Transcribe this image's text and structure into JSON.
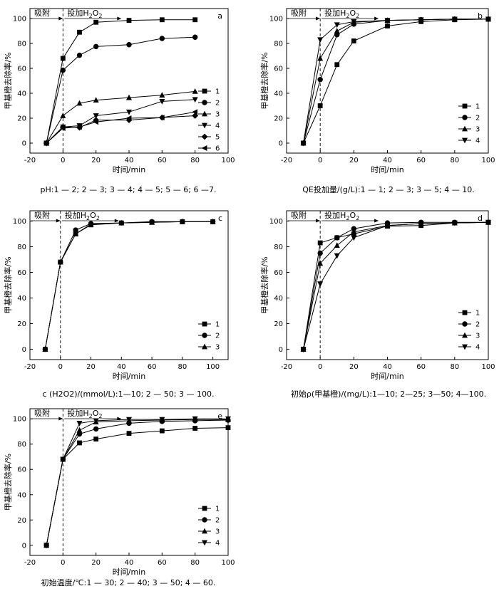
{
  "chart_data": [
    {
      "type": "line",
      "panel": "a",
      "xlabel": "时间/min",
      "ylabel": "甲基橙去除率/%",
      "xlim": [
        -20,
        100
      ],
      "ylim": [
        -8,
        108
      ],
      "xticks": [
        -20,
        0,
        20,
        40,
        60,
        80,
        100
      ],
      "yticks": [
        0,
        20,
        40,
        60,
        80,
        100
      ],
      "annotations": {
        "adsorption": "吸附",
        "h2o2_prefix": "投加H",
        "h2o2_sub1": "2",
        "h2o2_mid": "O",
        "h2o2_sub2": "2"
      },
      "legend_position": "right",
      "caption": "pH:1 — 2; 2 — 3; 3 — 4; 4 — 5; 5 — 6; 6 —7.",
      "series": [
        {
          "name": "1",
          "marker": "square",
          "x": [
            -10,
            0,
            10,
            20,
            40,
            60,
            80
          ],
          "y": [
            0,
            68,
            89,
            97,
            98.5,
            99,
            99
          ]
        },
        {
          "name": "2",
          "marker": "circle",
          "x": [
            -10,
            0,
            10,
            20,
            40,
            60,
            80
          ],
          "y": [
            0,
            58.5,
            70.5,
            77.5,
            79,
            84,
            85
          ]
        },
        {
          "name": "3",
          "marker": "triangle-up",
          "x": [
            -10,
            0,
            10,
            20,
            40,
            60,
            80
          ],
          "y": [
            0,
            22,
            32,
            34.5,
            36.5,
            38.5,
            41.5
          ]
        },
        {
          "name": "4",
          "marker": "triangle-down",
          "x": [
            -10,
            0,
            10,
            20,
            40,
            60,
            80
          ],
          "y": [
            0,
            13,
            14,
            22,
            25,
            33.5,
            35
          ]
        },
        {
          "name": "5",
          "marker": "diamond",
          "x": [
            -10,
            0,
            10,
            20,
            40,
            60,
            80
          ],
          "y": [
            0,
            13,
            12.5,
            18.5,
            18.5,
            20.5,
            22
          ]
        },
        {
          "name": "6",
          "marker": "triangle-left",
          "x": [
            -10,
            0,
            10,
            20,
            40,
            60,
            80
          ],
          "y": [
            0,
            12,
            13,
            17,
            20,
            20.5,
            25
          ]
        }
      ]
    },
    {
      "type": "line",
      "panel": "b",
      "xlabel": "时间/min",
      "ylabel": "甲基橙去除率/%",
      "xlim": [
        -20,
        100
      ],
      "ylim": [
        -8,
        108
      ],
      "xticks": [
        -20,
        0,
        20,
        40,
        60,
        80,
        100
      ],
      "yticks": [
        0,
        20,
        40,
        60,
        80,
        100
      ],
      "annotations": {
        "adsorption": "吸附",
        "h2o2_prefix": "投加H",
        "h2o2_sub1": "2",
        "h2o2_mid": "O",
        "h2o2_sub2": "2"
      },
      "legend_position": "bottom-right",
      "caption": "QE投加量/(g/L):1 — 1; 2 — 3; 3 — 5; 4 — 10.",
      "series": [
        {
          "name": "1",
          "marker": "square",
          "x": [
            -10,
            0,
            10,
            20,
            40,
            60,
            80,
            100
          ],
          "y": [
            0,
            30,
            63,
            82,
            94,
            97.5,
            99,
            99.5
          ]
        },
        {
          "name": "2",
          "marker": "circle",
          "x": [
            -10,
            0,
            10,
            20,
            40,
            60,
            80,
            100
          ],
          "y": [
            0,
            51,
            87,
            95.5,
            98.5,
            99,
            99.5,
            99.5
          ]
        },
        {
          "name": "3",
          "marker": "triangle-up",
          "x": [
            -10,
            0,
            10,
            20,
            40,
            60,
            80,
            100
          ],
          "y": [
            0,
            68,
            90,
            97,
            98.5,
            99,
            99.5,
            99.5
          ]
        },
        {
          "name": "4",
          "marker": "triangle-down",
          "x": [
            -10,
            0,
            10,
            20,
            40,
            60,
            80,
            100
          ],
          "y": [
            0,
            83,
            95,
            97.5,
            98.5,
            99,
            99.5,
            99.5
          ]
        }
      ]
    },
    {
      "type": "line",
      "panel": "c",
      "xlabel": "时间/min",
      "ylabel": "甲基橙去除率/%",
      "xlim": [
        -20,
        110
      ],
      "ylim": [
        -8,
        108
      ],
      "xticks": [
        -20,
        0,
        20,
        40,
        60,
        80,
        100
      ],
      "yticks": [
        0,
        20,
        40,
        60,
        80,
        100
      ],
      "annotations": {
        "adsorption": "吸附",
        "h2o2_prefix": "投加H",
        "h2o2_sub1": "2",
        "h2o2_mid": "O",
        "h2o2_sub2": "2"
      },
      "legend_position": "bottom-right",
      "caption": "c (H2O2)/(mmol/L):1—10; 2 — 50; 3 — 100.",
      "series": [
        {
          "name": "1",
          "marker": "square",
          "x": [
            -10,
            0,
            10,
            20,
            40,
            60,
            80,
            100
          ],
          "y": [
            0,
            68,
            90,
            97,
            98.5,
            99,
            99.5,
            99.5
          ]
        },
        {
          "name": "2",
          "marker": "circle",
          "x": [
            -10,
            0,
            10,
            20,
            40,
            60,
            80,
            100
          ],
          "y": [
            0,
            68,
            93,
            98,
            98.5,
            99.5,
            99.5,
            99.5
          ]
        },
        {
          "name": "3",
          "marker": "triangle-up",
          "x": [
            -10,
            0,
            10,
            20,
            40,
            60,
            80,
            100
          ],
          "y": [
            0,
            68,
            90,
            97.5,
            98.5,
            99,
            99.5,
            99.5
          ]
        }
      ]
    },
    {
      "type": "line",
      "panel": "d",
      "xlabel": "时间/min",
      "ylabel": "甲基橙去除率/%",
      "xlim": [
        -20,
        100
      ],
      "ylim": [
        -8,
        108
      ],
      "xticks": [
        -20,
        0,
        20,
        40,
        60,
        80,
        100
      ],
      "yticks": [
        0,
        20,
        40,
        60,
        80,
        100
      ],
      "annotations": {
        "adsorption": "吸附",
        "h2o2_prefix": "投加H",
        "h2o2_sub1": "2",
        "h2o2_mid": "O",
        "h2o2_sub2": "2"
      },
      "legend_position": "bottom-right",
      "caption": "初始ρ(甲基橙)/(mg/L):1—10; 2—25; 3—50; 4—100.",
      "series": [
        {
          "name": "1",
          "marker": "square",
          "x": [
            -10,
            0,
            10,
            20,
            40,
            60,
            80,
            100
          ],
          "y": [
            0,
            83,
            87,
            90,
            96,
            96.5,
            98.5,
            99
          ]
        },
        {
          "name": "2",
          "marker": "circle",
          "x": [
            -10,
            0,
            10,
            20,
            40,
            60,
            80,
            100
          ],
          "y": [
            0,
            75,
            87,
            94,
            98.5,
            99,
            99,
            99
          ]
        },
        {
          "name": "3",
          "marker": "triangle-up",
          "x": [
            -10,
            0,
            10,
            20,
            40,
            60,
            80,
            100
          ],
          "y": [
            0,
            67,
            81,
            91.5,
            96.5,
            98,
            98.5,
            99
          ]
        },
        {
          "name": "4",
          "marker": "triangle-down",
          "x": [
            -10,
            0,
            10,
            20,
            40,
            60,
            80,
            100
          ],
          "y": [
            0,
            51,
            73,
            87,
            96.5,
            98,
            98.5,
            99
          ]
        }
      ]
    },
    {
      "type": "line",
      "panel": "e",
      "xlabel": "时间/min",
      "ylabel": "甲基橙去除率/%",
      "xlim": [
        -20,
        100
      ],
      "ylim": [
        -8,
        108
      ],
      "xticks": [
        -20,
        0,
        20,
        40,
        60,
        80,
        100
      ],
      "yticks": [
        0,
        20,
        40,
        60,
        80,
        100
      ],
      "annotations": {
        "adsorption": "吸附",
        "h2o2_prefix": "投加H",
        "h2o2_sub1": "2",
        "h2o2_mid": "O",
        "h2o2_sub2": "2"
      },
      "legend_position": "bottom-right",
      "caption": "初始温度/℃:1 — 30; 2 — 40; 3 — 50; 4 — 60.",
      "series": [
        {
          "name": "1",
          "marker": "square",
          "x": [
            -10,
            0,
            10,
            20,
            40,
            60,
            80,
            100
          ],
          "y": [
            0,
            68,
            81,
            84,
            88.5,
            90.5,
            92.5,
            93
          ]
        },
        {
          "name": "2",
          "marker": "circle",
          "x": [
            -10,
            0,
            10,
            20,
            40,
            60,
            80,
            100
          ],
          "y": [
            0,
            68,
            88,
            92,
            96.5,
            98,
            98.5,
            99
          ]
        },
        {
          "name": "3",
          "marker": "triangle-up",
          "x": [
            -10,
            0,
            10,
            20,
            40,
            60,
            80,
            100
          ],
          "y": [
            0,
            68,
            91,
            97.5,
            98.5,
            99,
            99.5,
            99.5
          ]
        },
        {
          "name": "4",
          "marker": "triangle-down",
          "x": [
            -10,
            0,
            10,
            20,
            40,
            60,
            80,
            100
          ],
          "y": [
            0,
            68,
            96.5,
            98.5,
            99.5,
            99.5,
            100,
            100
          ]
        }
      ]
    }
  ]
}
